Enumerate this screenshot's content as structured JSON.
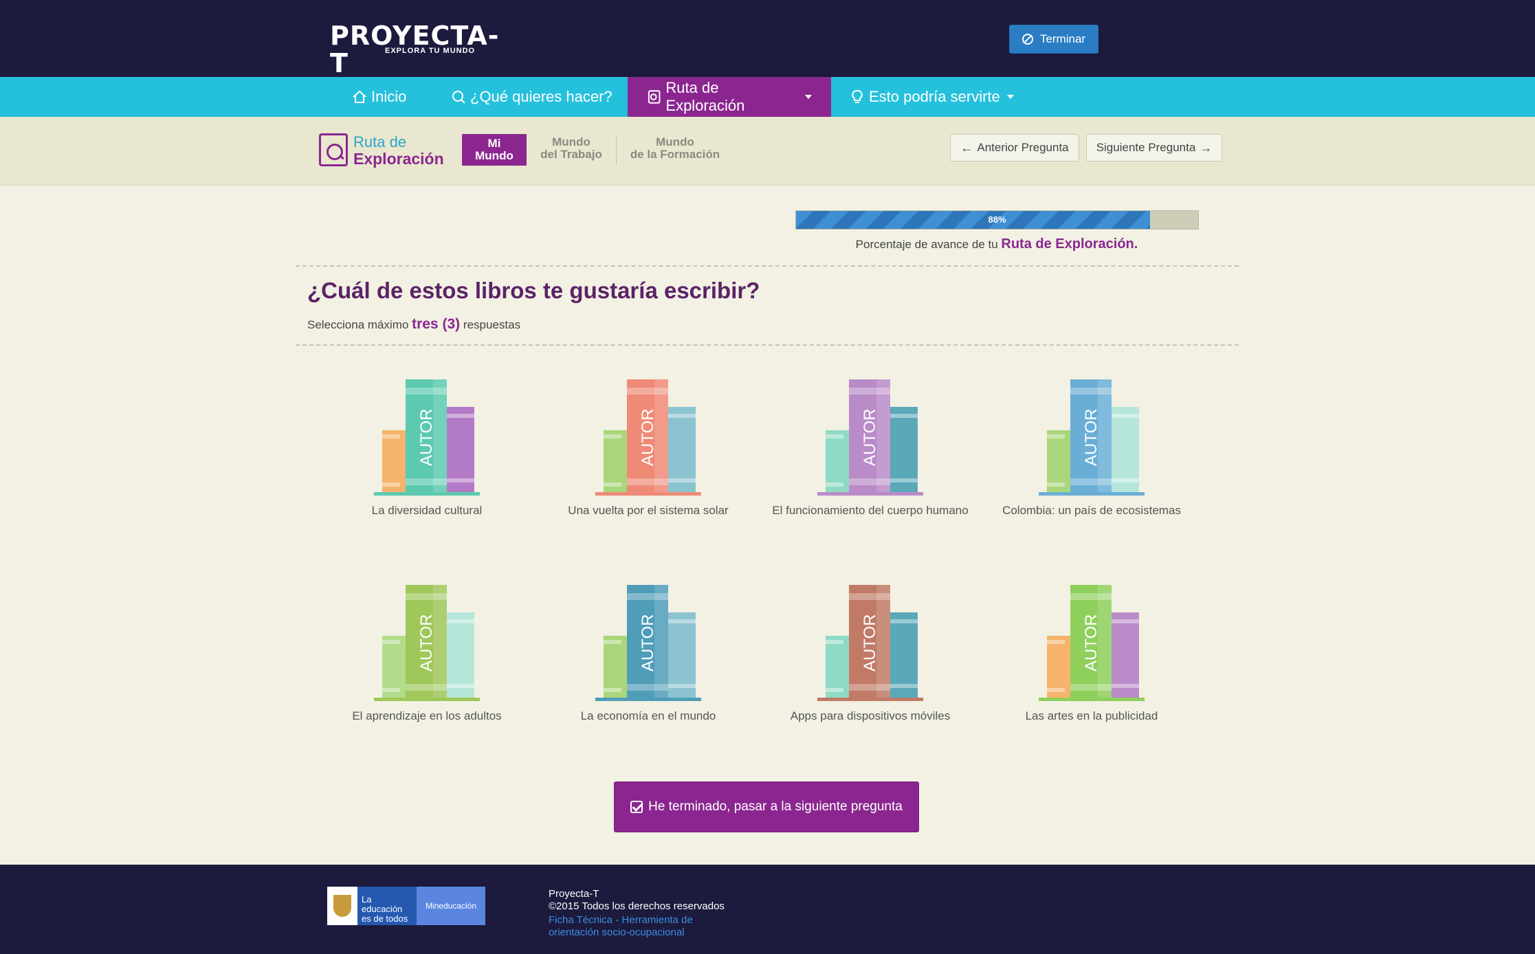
{
  "header": {
    "logo_main": "PROYECTA-T",
    "logo_sub": "EXPLORA TU MUNDO",
    "terminar_label": "Terminar"
  },
  "nav": {
    "items": [
      {
        "label": "Inicio",
        "icon": "home-icon"
      },
      {
        "label": "¿Qué quieres hacer?",
        "icon": "search-icon"
      },
      {
        "label": "Ruta de Exploración",
        "icon": "route-icon"
      },
      {
        "label": "Esto podría servirte",
        "icon": "lightbulb-icon"
      }
    ]
  },
  "subbar": {
    "ruta_line1": "Ruta de",
    "ruta_line2": "Exploración",
    "tabs": [
      {
        "line1": "Mi",
        "line2": "Mundo"
      },
      {
        "line1": "Mundo",
        "line2": "del Trabajo"
      },
      {
        "line1": "Mundo",
        "line2": "de la Formación"
      }
    ],
    "prev_label": "Anterior Pregunta",
    "next_label": "Siguiente Pregunta"
  },
  "progress": {
    "percent": 88,
    "label": "88%",
    "caption_prefix": "Porcentaje de avance de tu",
    "caption_highlight": "Ruta de Exploración."
  },
  "question": {
    "title": "¿Cuál de estos libros te gustaría escribir?",
    "instruction_prefix": "Selecciona máximo",
    "instruction_highlight": "tres (3)",
    "instruction_suffix": "respuestas"
  },
  "books": [
    {
      "label": "La diversidad cultural",
      "spine_text": "AUTOR",
      "colors": {
        "left": "#f5b36b",
        "main": "#5cc9b0",
        "right": "#b37bc7",
        "base": "#5cc9b0"
      }
    },
    {
      "label": "Una vuelta por el sistema solar",
      "spine_text": "AUTOR",
      "colors": {
        "left": "#a9d67a",
        "main": "#ef8a76",
        "right": "#8cc3d0",
        "base": "#ef8a76"
      }
    },
    {
      "label": "El funcionamiento del cuerpo humano",
      "spine_text": "AUTOR",
      "colors": {
        "left": "#8fdac4",
        "main": "#b98bc8",
        "right": "#5aa8b8",
        "base": "#b98bc8"
      }
    },
    {
      "label": "Colombia: un país de ecosistemas",
      "spine_text": "AUTOR",
      "colors": {
        "left": "#a9d67a",
        "main": "#6aaed6",
        "right": "#b6e6da",
        "base": "#6aaed6"
      }
    },
    {
      "label": "El aprendizaje en los adultos",
      "spine_text": "AUTOR",
      "colors": {
        "left": "#b3dc8a",
        "main": "#9fc75a",
        "right": "#b6e6da",
        "base": "#9fc75a"
      }
    },
    {
      "label": "La economía en el mundo",
      "spine_text": "AUTOR",
      "colors": {
        "left": "#a9d67a",
        "main": "#4f9db8",
        "right": "#8cc3d0",
        "base": "#4f9db8"
      }
    },
    {
      "label": "Apps para dispositivos móviles",
      "spine_text": "AUTOR",
      "colors": {
        "left": "#8fdac4",
        "main": "#c07a66",
        "right": "#5aa8b8",
        "base": "#c07a66"
      }
    },
    {
      "label": "Las artes en la publicidad",
      "spine_text": "AUTOR",
      "colors": {
        "left": "#f5b36b",
        "main": "#8fcf5c",
        "right": "#b98bc8",
        "base": "#8fcf5c"
      }
    }
  ],
  "finish_label": "He terminado, pasar a la siguiente pregunta",
  "footer": {
    "gov_edu": "La educación es de todos",
    "gov_min": "Mineducación",
    "line1": "Proyecta-T",
    "line2": "©2015 Todos los derechos reservados",
    "link": "Ficha Técnica - Herramienta de orientación socio-ocupacional"
  }
}
